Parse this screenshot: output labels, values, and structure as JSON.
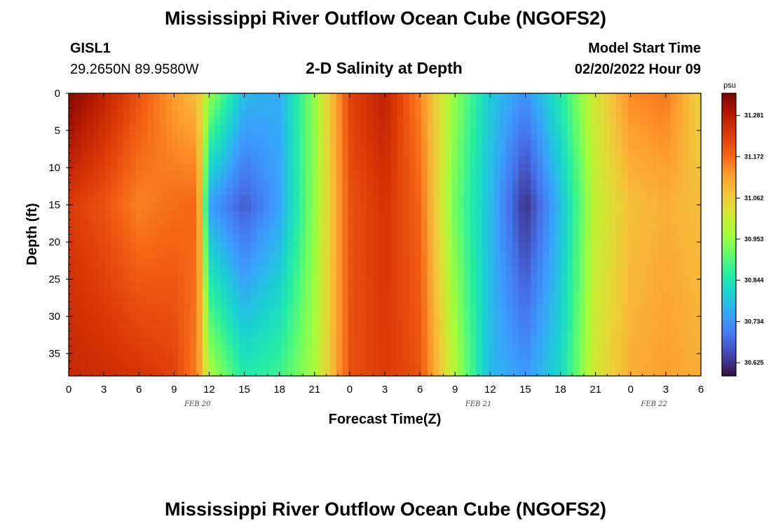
{
  "header": {
    "title": "Mississippi River Outflow Ocean Cube (NGOFS2)",
    "station": "GISL1",
    "coords": "29.2650N  89.9580W",
    "center_title": "2-D Salinity at Depth",
    "model_start_label": "Model Start Time",
    "model_start_value": "02/20/2022 Hour 09"
  },
  "footer": {
    "title_repeat": "Mississippi River Outflow Ocean Cube (NGOFS2)"
  },
  "colors": {
    "colormap": [
      "#30123b",
      "#4145ab",
      "#4675ed",
      "#39a2fc",
      "#1bcfd4",
      "#24eca6",
      "#61fc6c",
      "#a4fc3b",
      "#d1e834",
      "#f3c63a",
      "#fe9b2d",
      "#f36315",
      "#d93806",
      "#b11901",
      "#7a0402"
    ]
  },
  "chart_data": {
    "type": "heatmap",
    "xlabel": "Forecast Time(Z)",
    "ylabel": "Depth (ft)",
    "x_ticks": [
      "0",
      "3",
      "6",
      "9",
      "12",
      "15",
      "18",
      "21",
      "0",
      "3",
      "6",
      "9",
      "12",
      "15",
      "18",
      "21",
      "0",
      "3",
      "6"
    ],
    "date_labels": [
      {
        "text": "FEB 20",
        "hours": 11
      },
      {
        "text": "FEB 21",
        "hours": 35
      },
      {
        "text": "FEB 22",
        "hours": 50
      }
    ],
    "xlim_hours": [
      0,
      54
    ],
    "y_ticks": [
      0,
      5,
      10,
      15,
      20,
      25,
      30,
      35
    ],
    "ylim": [
      38,
      0
    ],
    "colorbar": {
      "unit": "psu",
      "ticks": [
        "31.281",
        "31.172",
        "31.062",
        "30.953",
        "30.844",
        "30.734",
        "30.625"
      ],
      "range": [
        30.59,
        31.34
      ]
    },
    "salinity_profile": [
      {
        "hour": 0,
        "surface": 31.33,
        "mid": 31.23,
        "deep": 31.26
      },
      {
        "hour": 3,
        "surface": 31.27,
        "mid": 31.2,
        "deep": 31.25
      },
      {
        "hour": 6,
        "surface": 31.2,
        "mid": 31.15,
        "deep": 31.24
      },
      {
        "hour": 9,
        "surface": 31.12,
        "mid": 31.17,
        "deep": 31.22
      },
      {
        "hour": 11,
        "surface": 31.08,
        "mid": 31.18,
        "deep": 31.15
      },
      {
        "hour": 12,
        "surface": 30.96,
        "mid": 30.75,
        "deep": 30.98
      },
      {
        "hour": 15,
        "surface": 30.78,
        "mid": 30.67,
        "deep": 30.85
      },
      {
        "hour": 18,
        "surface": 30.76,
        "mid": 30.75,
        "deep": 30.88
      },
      {
        "hour": 21,
        "surface": 30.95,
        "mid": 30.95,
        "deep": 30.97
      },
      {
        "hour": 24,
        "surface": 31.22,
        "mid": 31.2,
        "deep": 31.2
      },
      {
        "hour": 27,
        "surface": 31.27,
        "mid": 31.24,
        "deep": 31.23
      },
      {
        "hour": 30,
        "surface": 31.15,
        "mid": 31.18,
        "deep": 31.2
      },
      {
        "hour": 33,
        "surface": 30.95,
        "mid": 30.92,
        "deep": 30.98
      },
      {
        "hour": 36,
        "surface": 30.8,
        "mid": 30.78,
        "deep": 30.78
      },
      {
        "hour": 39,
        "surface": 30.73,
        "mid": 30.62,
        "deep": 30.74
      },
      {
        "hour": 42,
        "surface": 30.85,
        "mid": 30.78,
        "deep": 30.82
      },
      {
        "hour": 45,
        "surface": 31.02,
        "mid": 31.0,
        "deep": 31.02
      },
      {
        "hour": 48,
        "surface": 31.14,
        "mid": 31.08,
        "deep": 31.1
      },
      {
        "hour": 51,
        "surface": 31.16,
        "mid": 31.1,
        "deep": 31.12
      },
      {
        "hour": 54,
        "surface": 31.05,
        "mid": 31.08,
        "deep": 31.1
      }
    ]
  }
}
